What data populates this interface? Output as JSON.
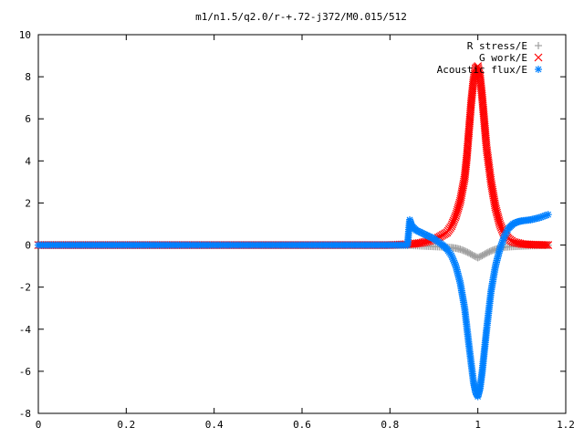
{
  "chart_data": {
    "type": "scatter",
    "title": "m1/n1.5/q2.0/r-+.72-j372/M0.015/512",
    "xlabel": "",
    "ylabel": "",
    "xlim": [
      0,
      1.2
    ],
    "ylim": [
      -8,
      10
    ],
    "x_ticks": [
      "0",
      "0.2",
      "0.4",
      "0.6",
      "0.8",
      "1",
      "1.2"
    ],
    "y_ticks": [
      "-8",
      "-6",
      "-4",
      "-2",
      "0",
      "2",
      "4",
      "6",
      "8",
      "10"
    ],
    "legend_position": "top-right",
    "grid": false,
    "series": [
      {
        "name": "R stress/E",
        "marker": "plus",
        "color": "#a0a0a0",
        "x": [
          0.0,
          0.1,
          0.2,
          0.3,
          0.4,
          0.5,
          0.6,
          0.7,
          0.8,
          0.85,
          0.88,
          0.9,
          0.92,
          0.94,
          0.95,
          0.96,
          0.97,
          0.98,
          0.99,
          1.0,
          1.01,
          1.02,
          1.03,
          1.04,
          1.05,
          1.06,
          1.08,
          1.1,
          1.12,
          1.14,
          1.16
        ],
        "y": [
          0,
          0,
          0,
          0,
          0,
          0,
          0,
          0,
          0,
          -0.02,
          -0.05,
          -0.07,
          -0.09,
          -0.12,
          -0.15,
          -0.2,
          -0.28,
          -0.38,
          -0.5,
          -0.6,
          -0.5,
          -0.38,
          -0.28,
          -0.2,
          -0.15,
          -0.1,
          -0.07,
          -0.05,
          -0.03,
          -0.02,
          -0.01
        ]
      },
      {
        "name": "G work/E",
        "marker": "cross",
        "color": "#ff0000",
        "x": [
          0.0,
          0.1,
          0.2,
          0.3,
          0.4,
          0.5,
          0.6,
          0.7,
          0.8,
          0.85,
          0.87,
          0.89,
          0.91,
          0.93,
          0.94,
          0.95,
          0.96,
          0.97,
          0.975,
          0.98,
          0.985,
          0.99,
          0.995,
          1.0,
          1.005,
          1.01,
          1.015,
          1.02,
          1.03,
          1.04,
          1.05,
          1.06,
          1.07,
          1.08,
          1.1,
          1.12,
          1.14,
          1.16
        ],
        "y": [
          0,
          0,
          0,
          0,
          0,
          0,
          0,
          0,
          0,
          0.05,
          0.1,
          0.2,
          0.35,
          0.6,
          0.9,
          1.4,
          2.1,
          3.2,
          4.2,
          5.5,
          6.8,
          7.8,
          8.4,
          8.5,
          8.0,
          7.0,
          5.8,
          4.6,
          3.0,
          1.8,
          1.0,
          0.5,
          0.3,
          0.15,
          0.05,
          0.02,
          0.01,
          0.0
        ]
      },
      {
        "name": "Acoustic flux/E",
        "marker": "star",
        "color": "#0080ff",
        "x": [
          0.0,
          0.1,
          0.2,
          0.3,
          0.4,
          0.5,
          0.6,
          0.7,
          0.8,
          0.84,
          0.845,
          0.85,
          0.86,
          0.87,
          0.88,
          0.89,
          0.9,
          0.91,
          0.92,
          0.93,
          0.94,
          0.95,
          0.96,
          0.97,
          0.98,
          0.99,
          0.995,
          1.0,
          1.005,
          1.01,
          1.02,
          1.03,
          1.04,
          1.05,
          1.06,
          1.07,
          1.08,
          1.09,
          1.1,
          1.12,
          1.14,
          1.16
        ],
        "y": [
          0,
          0,
          0,
          0,
          0,
          0,
          0,
          0,
          0,
          0,
          1.2,
          0.9,
          0.7,
          0.6,
          0.5,
          0.4,
          0.3,
          0.15,
          0.0,
          -0.2,
          -0.5,
          -1.0,
          -1.8,
          -3.0,
          -4.8,
          -6.5,
          -7.0,
          -7.2,
          -6.8,
          -6.0,
          -4.0,
          -2.2,
          -1.0,
          -0.2,
          0.4,
          0.8,
          1.0,
          1.1,
          1.15,
          1.2,
          1.3,
          1.45
        ]
      }
    ]
  }
}
